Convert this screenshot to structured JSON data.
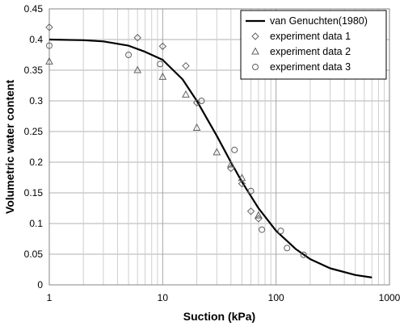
{
  "chart_data": {
    "type": "scatter",
    "title": "",
    "xlabel": "Suction (kPa)",
    "ylabel": "Volumetric water content",
    "xscale": "log",
    "xlim": [
      1,
      1000
    ],
    "ylim": [
      0,
      0.45
    ],
    "x_tick_labels": [
      "1",
      "10",
      "100",
      "1000"
    ],
    "x_tick_values": [
      1,
      10,
      100,
      1000
    ],
    "y_tick_values": [
      0,
      0.05,
      0.1,
      0.15,
      0.2,
      0.25,
      0.3,
      0.35,
      0.4,
      0.45
    ],
    "y_tick_labels": [
      "0",
      "0.05",
      "0.1",
      "0.15",
      "0.2",
      "0.25",
      "0.3",
      "0.35",
      "0.4",
      "0.45"
    ],
    "grid": "on (major and minor, x log-scale)",
    "legend_position": "top-right",
    "series": [
      {
        "name": "van Genuchten(1980)",
        "kind": "line",
        "color": "#000000",
        "x": [
          1,
          2,
          3,
          5,
          7,
          10,
          15,
          20,
          30,
          40,
          50,
          70,
          100,
          150,
          200,
          300,
          500,
          700
        ],
        "y": [
          0.4,
          0.399,
          0.397,
          0.39,
          0.38,
          0.367,
          0.335,
          0.3,
          0.243,
          0.2,
          0.168,
          0.125,
          0.088,
          0.058,
          0.042,
          0.027,
          0.016,
          0.012
        ]
      },
      {
        "name": "experiment data 1",
        "kind": "marker",
        "marker": "diamond",
        "x": [
          1,
          6,
          10,
          16,
          20,
          40,
          50,
          60,
          70
        ],
        "y": [
          0.42,
          0.403,
          0.389,
          0.357,
          0.297,
          0.19,
          0.165,
          0.12,
          0.108
        ]
      },
      {
        "name": "experiment data 2",
        "kind": "marker",
        "marker": "triangle",
        "x": [
          1,
          6,
          10,
          16,
          20,
          30,
          40,
          50,
          70
        ],
        "y": [
          0.364,
          0.35,
          0.339,
          0.31,
          0.256,
          0.216,
          0.196,
          0.174,
          0.113
        ]
      },
      {
        "name": "experiment data 3",
        "kind": "marker",
        "marker": "circle",
        "x": [
          1,
          5,
          9.5,
          22,
          43,
          60,
          75,
          110,
          125,
          175
        ],
        "y": [
          0.39,
          0.375,
          0.36,
          0.3,
          0.22,
          0.153,
          0.09,
          0.088,
          0.06,
          0.049
        ]
      }
    ]
  }
}
